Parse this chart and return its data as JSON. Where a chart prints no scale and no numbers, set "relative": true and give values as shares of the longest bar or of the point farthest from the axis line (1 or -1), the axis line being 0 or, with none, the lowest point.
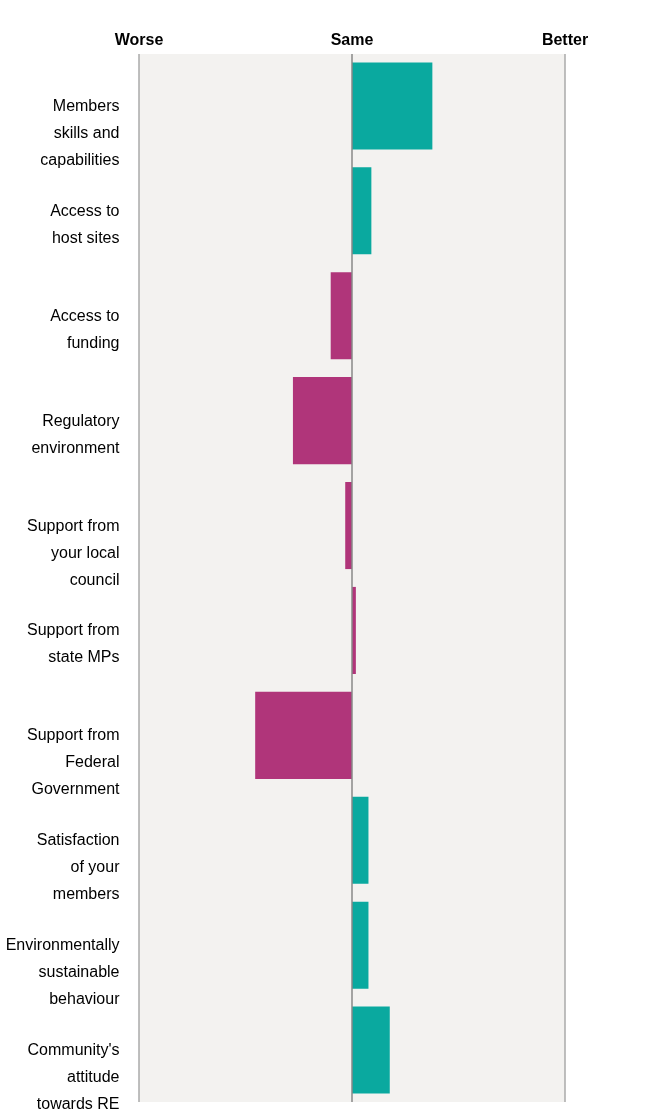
{
  "chart_data": {
    "type": "bar",
    "orientation": "horizontal",
    "relative": true,
    "categories": [
      "Members skills and capabilities",
      "Access to host sites",
      "Access to funding",
      "Regulatory environment",
      "Support from your local council",
      "Support from state MPs",
      "Support from Federal Government",
      "Satisfaction of your members",
      "Environmentally sustainable behaviour",
      "Community's attitude towards RE"
    ],
    "values": [
      0.83,
      0.2,
      -0.22,
      -0.61,
      -0.07,
      0.04,
      -1,
      0.17,
      0.17,
      0.39
    ],
    "colors": [
      "#0aa99f",
      "#0aa99f",
      "#b0357a",
      "#b0357a",
      "#b0357a",
      "#b0357a",
      "#b0357a",
      "#0aa99f",
      "#0aa99f",
      "#0aa99f"
    ],
    "annotations": [
      "Worse",
      "Same",
      "Better"
    ]
  }
}
